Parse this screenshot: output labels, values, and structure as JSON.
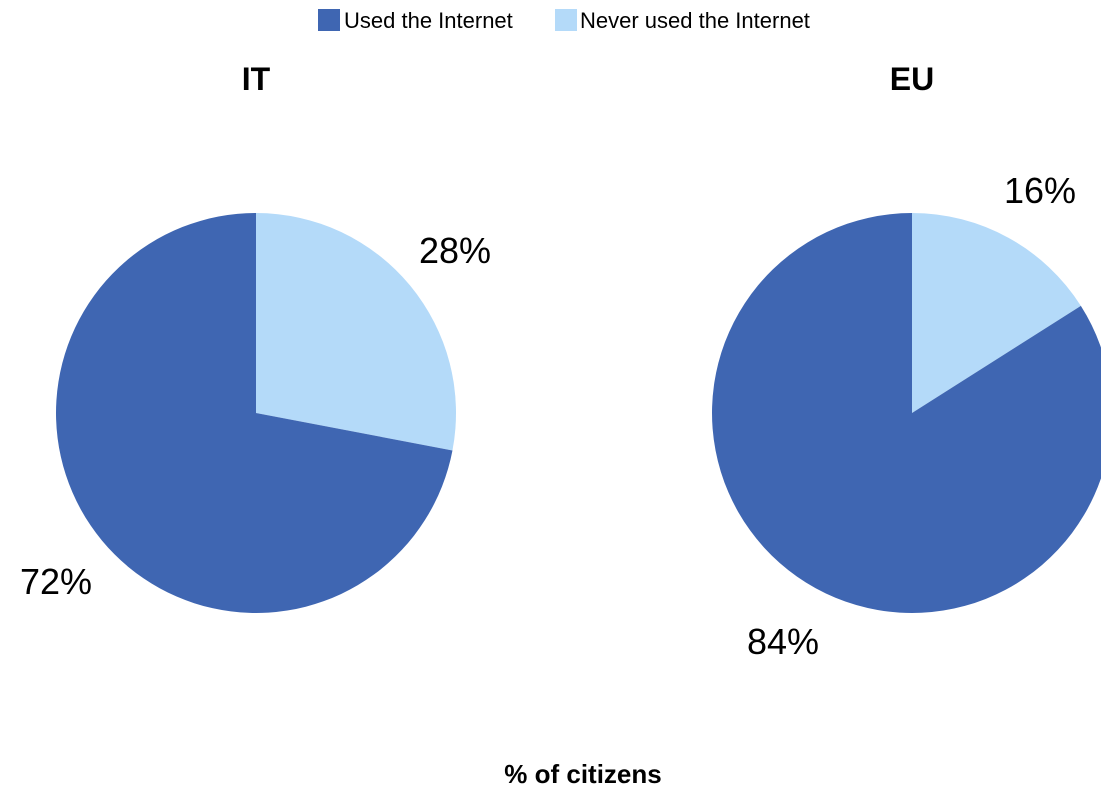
{
  "colors": {
    "used": "#3f66b2",
    "never": "#b4daf9"
  },
  "legend": {
    "used_label": "Used the Internet",
    "never_label": "Never used the Internet"
  },
  "footer": {
    "label": "% of citizens"
  },
  "chart_data": [
    {
      "type": "pie",
      "title": "IT",
      "slices": [
        {
          "name": "Never used the Internet",
          "value": 28,
          "label": "28%"
        },
        {
          "name": "Used the Internet",
          "value": 72,
          "label": "72%"
        }
      ]
    },
    {
      "type": "pie",
      "title": "EU",
      "slices": [
        {
          "name": "Never used the Internet",
          "value": 16,
          "label": "16%"
        },
        {
          "name": "Used the Internet",
          "value": 84,
          "label": "84%"
        }
      ]
    }
  ]
}
